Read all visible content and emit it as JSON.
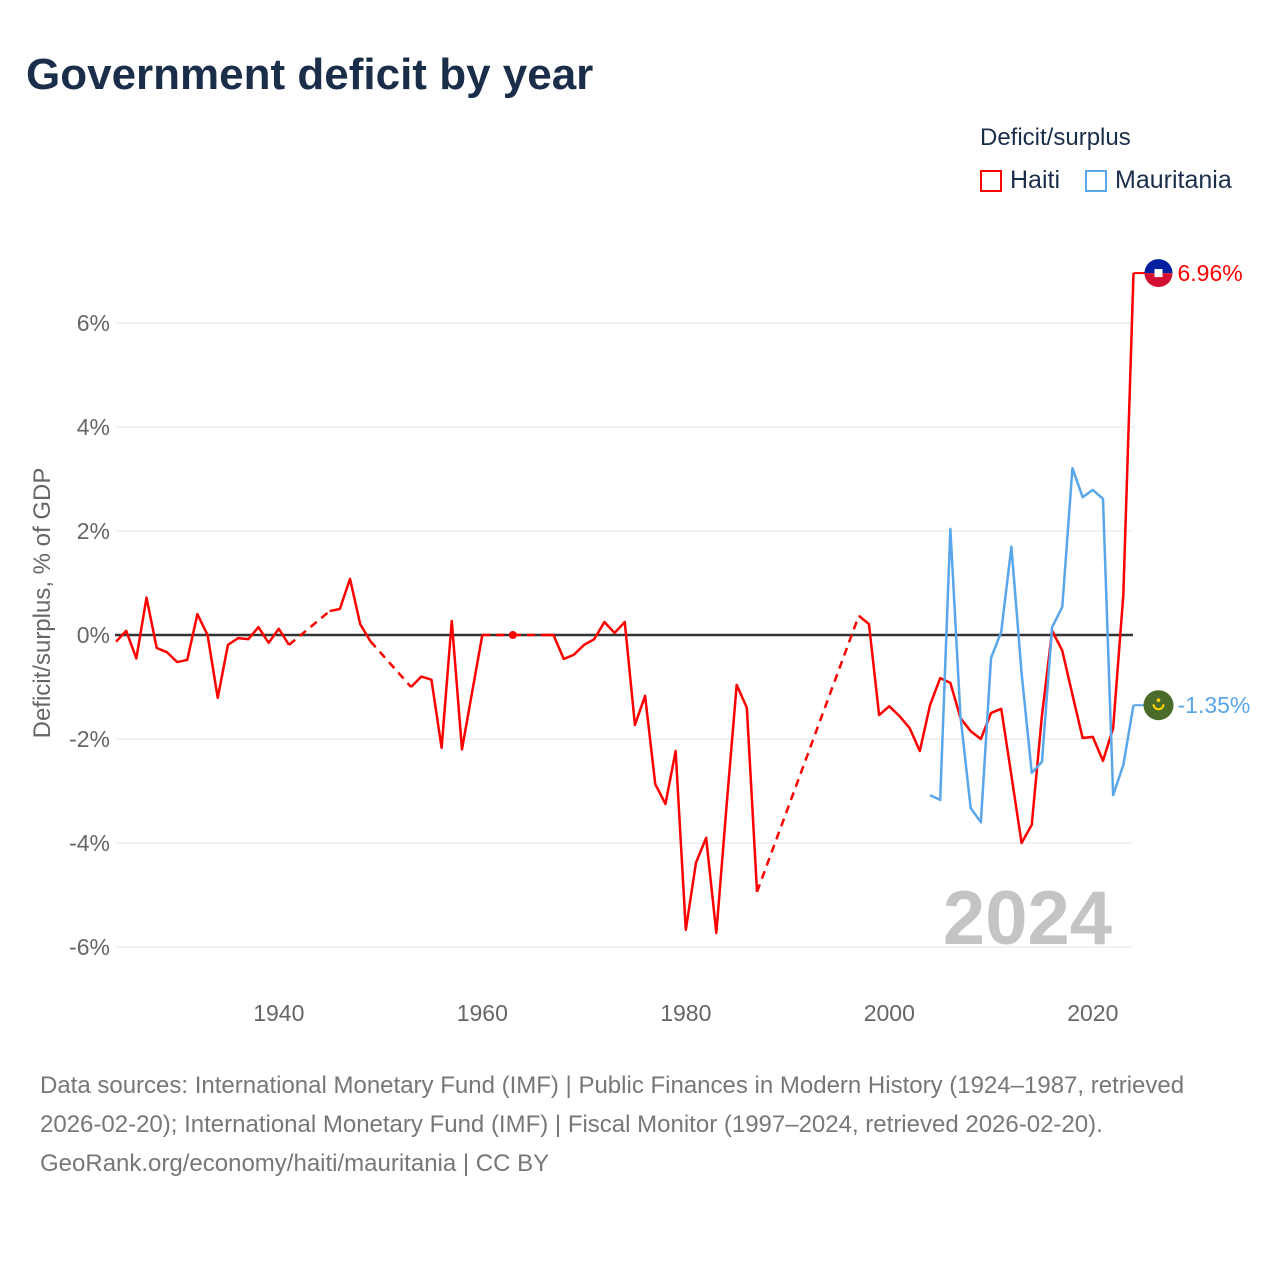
{
  "title": "Government deficit by year",
  "legend": {
    "title": "Deficit/surplus",
    "items": [
      {
        "label": "Haiti",
        "color": "#ff0000"
      },
      {
        "label": "Mauritania",
        "color": "#5aa6ea"
      }
    ]
  },
  "year_watermark": "2024",
  "footer": {
    "sources": "Data sources: International Monetary Fund (IMF) | Public Finances in Modern History (1924–1987, retrieved 2026-02-20); International Monetary Fund (IMF) | Fiscal Monitor (1997–2024, retrieved 2026-02-20).",
    "credit": "GeoRank.org/economy/haiti/mauritania | CC BY"
  },
  "chart_data": {
    "type": "line",
    "title": "Government deficit by year",
    "ylabel": "Deficit/surplus, % of GDP",
    "xlabel": "",
    "xlim": [
      1924,
      2024
    ],
    "ylim": [
      -7,
      7.5
    ],
    "x_ticks": [
      {
        "v": 1940,
        "label": "1940"
      },
      {
        "v": 1960,
        "label": "1960"
      },
      {
        "v": 1980,
        "label": "1980"
      },
      {
        "v": 2000,
        "label": "2000"
      },
      {
        "v": 2020,
        "label": "2020"
      }
    ],
    "y_ticks": [
      {
        "v": 6,
        "label": "6%"
      },
      {
        "v": 4,
        "label": "4%"
      },
      {
        "v": 2,
        "label": "2%"
      },
      {
        "v": 0,
        "label": "0%"
      },
      {
        "v": -2,
        "label": "-2%"
      },
      {
        "v": -4,
        "label": "-4%"
      },
      {
        "v": -6,
        "label": "-6%"
      }
    ],
    "grid": true,
    "legend_position": "top-right",
    "series": [
      {
        "name": "Haiti",
        "color": "#ff0000",
        "end_label": "6.96%",
        "start_year": 1924,
        "values": [
          -0.13,
          0.08,
          -0.45,
          0.72,
          -0.25,
          -0.33,
          -0.52,
          -0.48,
          0.4,
          0,
          -1.21,
          -0.19,
          -0.06,
          -0.08,
          0.15,
          -0.15,
          0.12,
          -0.19,
          null,
          null,
          null,
          0.46,
          0.5,
          1.08,
          0.21,
          -0.12,
          null,
          null,
          null,
          -1.0,
          -0.8,
          -0.86,
          -2.17,
          0.27,
          -2.2,
          -1.1,
          0,
          null,
          null,
          0,
          null,
          null,
          0,
          0,
          -0.46,
          -0.38,
          -0.19,
          -0.08,
          0.25,
          0.04,
          0.25,
          -1.73,
          -1.17,
          -2.87,
          -3.25,
          -2.23,
          -5.67,
          -4.38,
          -3.9,
          -5.73,
          -3.3,
          -0.96,
          -1.4,
          -4.94,
          null,
          null,
          null,
          null,
          null,
          null,
          null,
          null,
          null,
          0.37,
          0.21,
          -1.54,
          -1.37,
          -1.56,
          -1.79,
          -2.23,
          -1.35,
          -0.83,
          -0.92,
          -1.6,
          -1.85,
          -2.0,
          -1.5,
          -1.42,
          -2.7,
          -4.0,
          -3.65,
          -1.55,
          0.08,
          -0.3,
          -1.15,
          -1.98,
          -1.96,
          -2.42,
          -1.79,
          0.77,
          6.96
        ]
      },
      {
        "name": "Mauritania",
        "color": "#5aa6ea",
        "end_label": "-1.35%",
        "start_year": 2004,
        "values": [
          -3.08,
          -3.17,
          2.04,
          -1.58,
          -3.33,
          -3.6,
          -0.44,
          0.06,
          1.7,
          -0.73,
          -2.65,
          -2.44,
          0.15,
          0.54,
          3.21,
          2.65,
          2.79,
          2.62,
          -3.08,
          -2.5,
          -1.35
        ]
      }
    ]
  }
}
